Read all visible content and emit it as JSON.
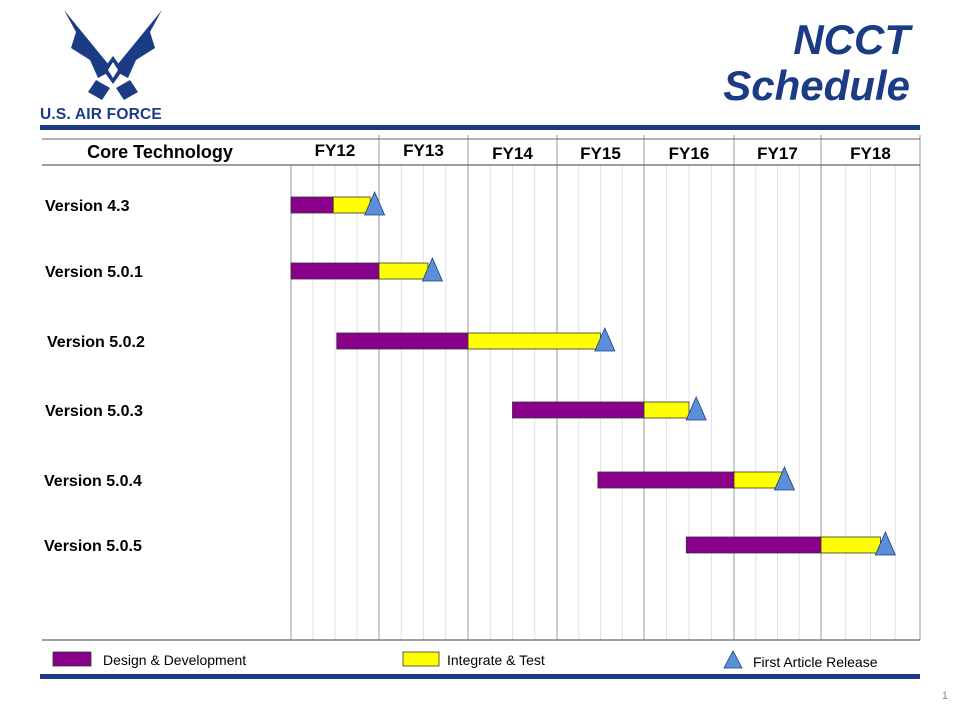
{
  "header": {
    "logo_text": "U.S. AIR FORCE",
    "title_line1": "NCCT",
    "title_line2": "Schedule"
  },
  "slide_number": "1",
  "colors": {
    "brand_blue": "#1b3c84",
    "design_development": "#8b008b",
    "integrate_test": "#ffff00",
    "first_article_release": "#5b8fd9"
  },
  "chart_data": {
    "type": "gantt",
    "row_header": "Core Technology",
    "columns": [
      "FY12",
      "FY13",
      "FY14",
      "FY15",
      "FY16",
      "FY17",
      "FY18"
    ],
    "time_units": "fiscal year (FY12 start = 12.0, FY18 end = 19.0)",
    "tasks": [
      {
        "label": "Version 4.3",
        "design_start": 12.0,
        "design_end": 12.48,
        "test_end": 12.9,
        "release": 12.95
      },
      {
        "label": "Version 5.0.1",
        "design_start": 12.0,
        "design_end": 13.0,
        "test_end": 13.55,
        "release": 13.6
      },
      {
        "label": "Version 5.0.2",
        "design_start": 12.52,
        "design_end": 14.0,
        "test_end": 15.5,
        "release": 15.55
      },
      {
        "label": "Version 5.0.3",
        "design_start": 14.5,
        "design_end": 16.0,
        "test_end": 16.5,
        "release": 16.58
      },
      {
        "label": "Version 5.0.4",
        "design_start": 15.47,
        "design_end": 17.0,
        "test_end": 17.55,
        "release": 17.58
      },
      {
        "label": "Version 5.0.5",
        "design_start": 16.47,
        "design_end": 18.0,
        "test_end": 18.6,
        "release": 18.65
      }
    ],
    "legend": [
      {
        "name": "Design & Development",
        "marker": "bar",
        "color": "#8b008b"
      },
      {
        "name": "Integrate  & Test",
        "marker": "bar",
        "color": "#ffff00"
      },
      {
        "name": "First Article Release",
        "marker": "triangle",
        "color": "#5b8fd9"
      }
    ]
  }
}
